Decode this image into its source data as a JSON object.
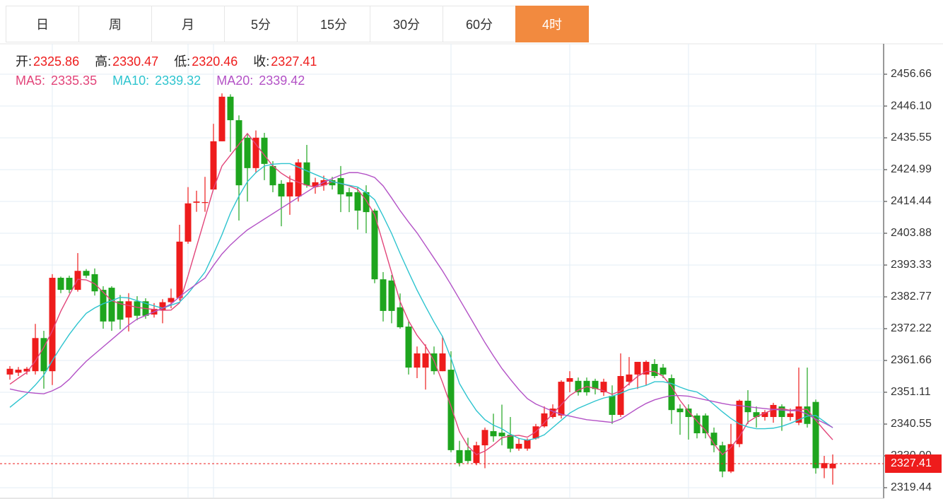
{
  "tabs": {
    "items": [
      "日",
      "周",
      "月",
      "5分",
      "15分",
      "30分",
      "60分",
      "4时"
    ],
    "active": 7
  },
  "chart_data": {
    "type": "candlestick",
    "ohlc_labels": [
      "开:",
      "高:",
      "低:",
      "收:"
    ],
    "up_color": "#ee1c1c",
    "down_color": "#1ea51e",
    "ylim": [
      2315.92,
      2466.75
    ],
    "yticks": [
      2319.44,
      {
        "value": 2330,
        "label": "2330.00"
      },
      2340.55,
      2351.11,
      2361.66,
      2372.22,
      2382.77,
      2393.33,
      2403.88,
      2414.44,
      2424.99,
      2435.55,
      {
        "value": 2446.1,
        "label": "2446.10"
      },
      2456.66
    ],
    "grid": true,
    "candles": [
      [
        2357.0,
        2359.8,
        2355.3,
        2358.9
      ],
      [
        2357.6,
        2359.5,
        2356.5,
        2358.6
      ],
      [
        2358.0,
        2359.5,
        2357.0,
        2358.9
      ],
      [
        2358.1,
        2373.8,
        2357.0,
        2369.1
      ],
      [
        2369.1,
        2371.5,
        2352.3,
        2358.1
      ],
      [
        2358.1,
        2390.3,
        2353.5,
        2389.1
      ],
      [
        2389.1,
        2389.5,
        2384.0,
        2385.1
      ],
      [
        2389.1,
        2389.8,
        2384.0,
        2385.1
      ],
      [
        2385.1,
        2397.3,
        2384.5,
        2391.4
      ],
      [
        2391.4,
        2392.0,
        2389.0,
        2389.8
      ],
      [
        2390.3,
        2392.2,
        2383.2,
        2384.6
      ],
      [
        2385.1,
        2386.3,
        2372.2,
        2374.6
      ],
      [
        2385.8,
        2386.3,
        2371.5,
        2374.6
      ],
      [
        2381.3,
        2383.4,
        2372.0,
        2375.2
      ],
      [
        2375.9,
        2384.0,
        2371.3,
        2381.3
      ],
      [
        2381.3,
        2383.0,
        2375.0,
        2376.5
      ],
      [
        2381.3,
        2382.3,
        2375.5,
        2376.5
      ],
      [
        2376.9,
        2380.7,
        2375.9,
        2378.8
      ],
      [
        2378.3,
        2382.0,
        2374.0,
        2381.0
      ],
      [
        2381.0,
        2385.5,
        2379.0,
        2382.4
      ],
      [
        2382.4,
        2406.7,
        2381.6,
        2401.1
      ],
      [
        2401.1,
        2419.2,
        2400.4,
        2413.8
      ],
      [
        2414.0,
        2418.0,
        2411.0,
        2414.4
      ],
      [
        2414.0,
        2422.6,
        2411.0,
        2414.2
      ],
      [
        2418.4,
        2440.2,
        2418.4,
        2434.4
      ],
      [
        2434.4,
        2450.3,
        2434.4,
        2449.2
      ],
      [
        2449.2,
        2450.0,
        2430.9,
        2441.4
      ],
      [
        2441.4,
        2443.0,
        2408.1,
        2419.8
      ],
      [
        2435.6,
        2436.7,
        2414.4,
        2425.5
      ],
      [
        2425.5,
        2438.0,
        2423.9,
        2435.6
      ],
      [
        2435.6,
        2437.2,
        2421.5,
        2426.9
      ],
      [
        2426.2,
        2427.8,
        2417.5,
        2419.8
      ],
      [
        2420.3,
        2421.5,
        2406.2,
        2416.1
      ],
      [
        2416.1,
        2423.0,
        2410.0,
        2420.8
      ],
      [
        2416.1,
        2428.5,
        2414.4,
        2427.4
      ],
      [
        2427.4,
        2433.2,
        2419.0,
        2419.8
      ],
      [
        2419.4,
        2422.3,
        2417.0,
        2420.8
      ],
      [
        2419.8,
        2423.0,
        2418.0,
        2421.5
      ],
      [
        2421.5,
        2422.6,
        2418.4,
        2419.8
      ],
      [
        2422.2,
        2426.2,
        2410.9,
        2416.8
      ],
      [
        2417.5,
        2419.0,
        2410.9,
        2416.1
      ],
      [
        2417.5,
        2419.0,
        2405.1,
        2411.4
      ],
      [
        2417.5,
        2419.8,
        2403.9,
        2410.9
      ],
      [
        2411.4,
        2412.0,
        2387.3,
        2388.6
      ],
      [
        2388.6,
        2391.0,
        2374.6,
        2378.1
      ],
      [
        2388.2,
        2390.0,
        2374.0,
        2378.1
      ],
      [
        2379.3,
        2383.9,
        2372.2,
        2372.7
      ],
      [
        2372.9,
        2374.6,
        2357.0,
        2359.3
      ],
      [
        2359.3,
        2366.3,
        2355.8,
        2364.0
      ],
      [
        2359.3,
        2367.0,
        2352.0,
        2364.0
      ],
      [
        2364.0,
        2366.3,
        2357.0,
        2358.1
      ],
      [
        2358.1,
        2369.8,
        2358.1,
        2364.0
      ],
      [
        2358.6,
        2364.7,
        2331.2,
        2331.9
      ],
      [
        2331.9,
        2335.0,
        2326.5,
        2327.6
      ],
      [
        2331.9,
        2336.0,
        2327.6,
        2328.3
      ],
      [
        2327.6,
        2334.7,
        2326.9,
        2333.5
      ],
      [
        2333.5,
        2339.4,
        2325.9,
        2338.6
      ],
      [
        2338.2,
        2344.0,
        2334.7,
        2336.5
      ],
      [
        2337.7,
        2347.0,
        2333.5,
        2336.5
      ],
      [
        2337.0,
        2342.9,
        2331.2,
        2332.4
      ],
      [
        2332.4,
        2335.8,
        2331.7,
        2334.0
      ],
      [
        2332.4,
        2335.8,
        2331.7,
        2335.4
      ],
      [
        2335.8,
        2340.6,
        2335.4,
        2339.8
      ],
      [
        2339.8,
        2346.4,
        2339.4,
        2344.1
      ],
      [
        2342.9,
        2347.1,
        2342.4,
        2345.7
      ],
      [
        2343.4,
        2355.1,
        2342.4,
        2354.6
      ],
      [
        2354.6,
        2358.1,
        2351.1,
        2355.8
      ],
      [
        2354.9,
        2356.0,
        2350.0,
        2351.1
      ],
      [
        2354.9,
        2356.0,
        2350.0,
        2351.1
      ],
      [
        2354.9,
        2355.6,
        2350.4,
        2352.2
      ],
      [
        2351.1,
        2355.6,
        2349.9,
        2354.6
      ],
      [
        2349.9,
        2353.4,
        2340.6,
        2343.6
      ],
      [
        2343.6,
        2364.0,
        2342.9,
        2356.5
      ],
      [
        2354.6,
        2362.8,
        2353.4,
        2357.0
      ],
      [
        2357.0,
        2361.2,
        2352.2,
        2361.2
      ],
      [
        2357.0,
        2361.7,
        2353.4,
        2361.2
      ],
      [
        2360.5,
        2362.1,
        2355.8,
        2356.5
      ],
      [
        2359.3,
        2360.5,
        2355.8,
        2357.0
      ],
      [
        2355.8,
        2357.0,
        2340.6,
        2345.2
      ],
      [
        2345.7,
        2347.1,
        2337.0,
        2344.5
      ],
      [
        2345.7,
        2347.1,
        2335.4,
        2342.9
      ],
      [
        2343.4,
        2344.1,
        2335.8,
        2337.5
      ],
      [
        2343.4,
        2344.1,
        2335.8,
        2337.5
      ],
      [
        2337.7,
        2339.4,
        2331.2,
        2333.5
      ],
      [
        2333.5,
        2334.7,
        2322.9,
        2324.8
      ],
      [
        2324.8,
        2340.6,
        2324.3,
        2333.9
      ],
      [
        2333.9,
        2348.7,
        2332.9,
        2348.3
      ],
      [
        2348.3,
        2351.8,
        2340.6,
        2344.5
      ],
      [
        2344.5,
        2346.4,
        2339.4,
        2342.9
      ],
      [
        2342.9,
        2345.2,
        2341.7,
        2344.5
      ],
      [
        2342.9,
        2347.6,
        2341.0,
        2346.9
      ],
      [
        2346.4,
        2347.1,
        2338.3,
        2342.9
      ],
      [
        2342.9,
        2345.7,
        2341.7,
        2344.1
      ],
      [
        2341.0,
        2359.3,
        2340.2,
        2346.4
      ],
      [
        2346.4,
        2359.3,
        2339.4,
        2340.6
      ],
      [
        2347.9,
        2348.7,
        2324.1,
        2325.9
      ],
      [
        2325.9,
        2330.0,
        2322.6,
        2327.6
      ],
      [
        2325.86,
        2330.47,
        2320.46,
        2327.41
      ]
    ],
    "series": [
      {
        "name": "MA5:",
        "color": "#e2457a",
        "values": [
          2353.8,
          2355.8,
          2357.7,
          2361.5,
          2366.0,
          2371.5,
          2378.0,
          2383.4,
          2388.6,
          2388.4,
          2387.1,
          2384.3,
          2381.5,
          2380.5,
          2379.9,
          2379.3,
          2378.9,
          2378.6,
          2378.3,
          2378.4,
          2380.8,
          2389.8,
          2399.4,
          2409,
          2418.6,
          2426.2,
          2429.8,
          2433.4,
          2437,
          2433.4,
          2429.8,
          2426.2,
          2423.8,
          2422,
          2420.8,
          2419.8,
          2419.2,
          2419.8,
          2421,
          2420.4,
          2419.6,
          2418.4,
          2414.8,
          2410,
          2400.4,
          2390.8,
          2381.2,
          2374.8,
          2370,
          2366.4,
          2361.6,
          2354.4,
          2346.4,
          2338,
          2333.2,
          2330.4,
          2331.6,
          2333.6,
          2336,
          2336.6,
          2336.8,
          2336.2,
          2338,
          2341,
          2344,
          2347,
          2350,
          2351.8,
          2353,
          2352.4,
          2351.6,
          2350.4,
          2351.6,
          2354,
          2356.4,
          2358,
          2358,
          2356.4,
          2353,
          2348.4,
          2344.8,
          2341.5,
          2338.5,
          2334,
          2330.4,
          2332.8,
          2336.4,
          2341.2,
          2343,
          2344.2,
          2345.4,
          2345.7,
          2345.1,
          2345.5,
          2345.4,
          2341.8,
          2338.5,
          2335.35
        ]
      },
      {
        "name": "MA10:",
        "color": "#2ec4cf",
        "values": [
          2346.1,
          2348.4,
          2350.6,
          2353.5,
          2356.8,
          2361.6,
          2366.1,
          2370.3,
          2374,
          2377.3,
          2379.1,
          2380.5,
          2381.5,
          2382.6,
          2382.4,
          2381.5,
          2380.6,
          2379.8,
          2379,
          2380,
          2381,
          2383.9,
          2387.4,
          2391,
          2397,
          2403.4,
          2410.6,
          2416.2,
          2421,
          2424,
          2426.2,
          2426.8,
          2427,
          2427,
          2425.8,
          2424.6,
          2423.4,
          2422.2,
          2421,
          2420.4,
          2419.8,
          2419.2,
          2417.4,
          2415,
          2409.6,
          2403.8,
          2397.2,
          2391,
          2385,
          2379.6,
          2374.4,
          2369.6,
          2362.4,
          2354,
          2349.2,
          2345,
          2342,
          2340.2,
          2339,
          2337.2,
          2335.8,
          2335.2,
          2335.8,
          2337,
          2339.4,
          2341.8,
          2344.2,
          2345.8,
          2347,
          2348.2,
          2349.2,
          2349.8,
          2350.8,
          2352,
          2352.6,
          2353.4,
          2354.6,
          2354.6,
          2354,
          2352.8,
          2351.8,
          2351.2,
          2349.4,
          2347,
          2344.6,
          2342.4,
          2340.6,
          2339.6,
          2339,
          2339,
          2339.2,
          2339.8,
          2340.8,
          2342,
          2343.2,
          2343.4,
          2341.4,
          2339.32
        ]
      },
      {
        "name": "MA20:",
        "color": "#b352c6",
        "values": [
          2352.2,
          2351.6,
          2351.1,
          2350.8,
          2350.6,
          2351.6,
          2353,
          2355.4,
          2358.5,
          2361.4,
          2363.8,
          2366.2,
          2368.6,
          2371,
          2373.4,
          2375.4,
          2376.6,
          2377.8,
          2379,
          2380.4,
          2382.8,
          2385,
          2387,
          2389,
          2393.2,
          2397,
          2400,
          2402.6,
          2405,
          2406.8,
          2408.6,
          2410.4,
          2412.2,
          2414,
          2415.8,
          2417.6,
          2419.4,
          2420.8,
          2422,
          2423.2,
          2424,
          2424,
          2423.4,
          2422.4,
          2419.6,
          2415.6,
          2411.4,
          2407.6,
          2404,
          2399.8,
          2395.6,
          2391.4,
          2386.8,
          2382,
          2377.2,
          2372.4,
          2367.6,
          2363.2,
          2359,
          2355.4,
          2352,
          2349,
          2347.2,
          2346,
          2344.8,
          2343.8,
          2343.2,
          2342.6,
          2342,
          2341.7,
          2341.4,
          2341.1,
          2342.2,
          2344,
          2345.8,
          2347.4,
          2348.6,
          2349.4,
          2350,
          2350,
          2349.8,
          2349.2,
          2348.6,
          2348,
          2347.4,
          2346.9,
          2346.7,
          2346.3,
          2346,
          2345.7,
          2345.4,
          2345.2,
          2345,
          2345,
          2343.8,
          2342.2,
          2340.9,
          2339.42
        ]
      }
    ]
  }
}
